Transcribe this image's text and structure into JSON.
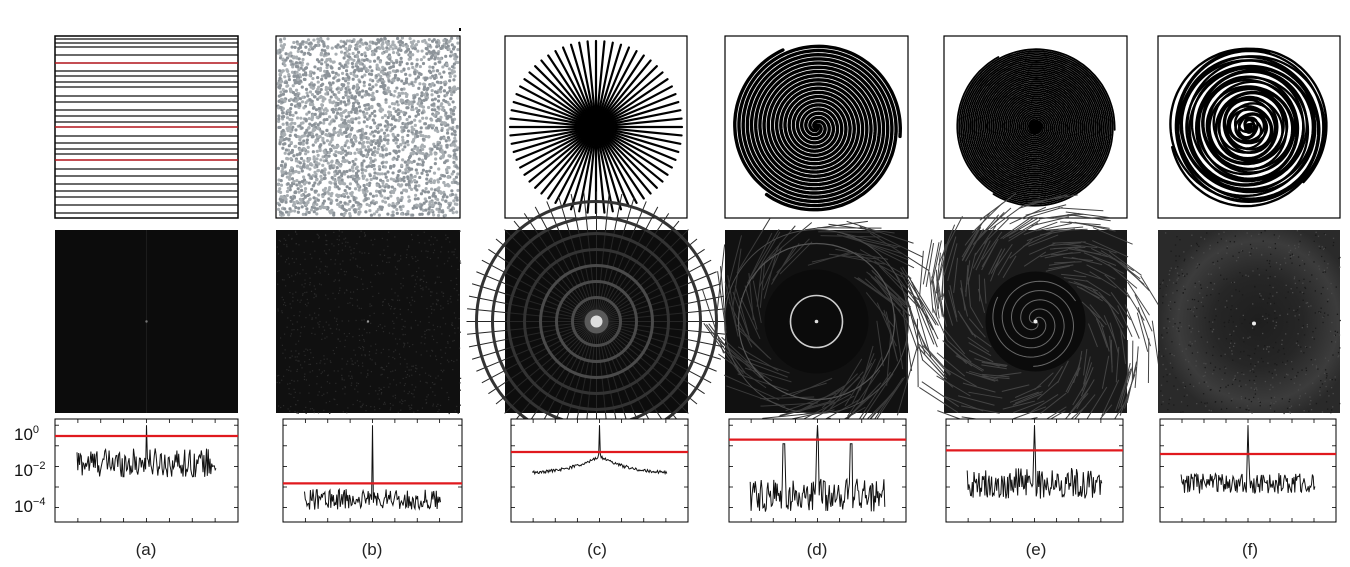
{
  "figure": {
    "panel_labels": [
      "(a)",
      "(b)",
      "(c)",
      "(d)",
      "(e)",
      "(f)"
    ],
    "pattern_types": [
      "horizontal-lines",
      "random-dots",
      "radial-spokes",
      "archimedean-spiral",
      "tight-spiral",
      "irregular-spiral"
    ],
    "spectrum_description": [
      "dark-uniform",
      "dark-speckle",
      "concentric-rings",
      "ring-web",
      "swirl-ring",
      "diffuse-halo"
    ],
    "colors": {
      "threshold_line": "#e0191e",
      "trace": "#111111",
      "spectrum_bg": "#0d0d0d"
    }
  },
  "chart_data": [
    {
      "type": "line",
      "panel": "(a)",
      "yscale": "log",
      "ytick_labels": [
        "10^0",
        "10^-2",
        "10^-4"
      ],
      "ylim": [
        2e-05,
        2
      ],
      "threshold": 0.3,
      "baseline": 0.015,
      "peak": 1.0,
      "noise_span_decades": 1.4
    },
    {
      "type": "line",
      "panel": "(b)",
      "yscale": "log",
      "ylim": [
        2e-05,
        2
      ],
      "threshold": 0.0015,
      "baseline": 0.00025,
      "peak": 1.0,
      "noise_span_decades": 1.0
    },
    {
      "type": "line",
      "panel": "(c)",
      "yscale": "log",
      "ylim": [
        2e-05,
        2
      ],
      "threshold": 0.05,
      "baseline": 0.004,
      "peak": 1.0,
      "noise_span_decades": 0.3
    },
    {
      "type": "line",
      "panel": "(d)",
      "yscale": "log",
      "ylim": [
        2e-05,
        2
      ],
      "threshold": 0.2,
      "baseline": 0.0004,
      "peak": 1.0,
      "noise_span_decades": 1.6
    },
    {
      "type": "line",
      "panel": "(e)",
      "yscale": "log",
      "ylim": [
        2e-05,
        2
      ],
      "threshold": 0.06,
      "baseline": 0.0015,
      "peak": 1.0,
      "noise_span_decades": 1.5
    },
    {
      "type": "line",
      "panel": "(f)",
      "yscale": "log",
      "ylim": [
        2e-05,
        2
      ],
      "threshold": 0.04,
      "baseline": 0.0015,
      "peak": 1.0,
      "noise_span_decades": 1.0
    }
  ]
}
